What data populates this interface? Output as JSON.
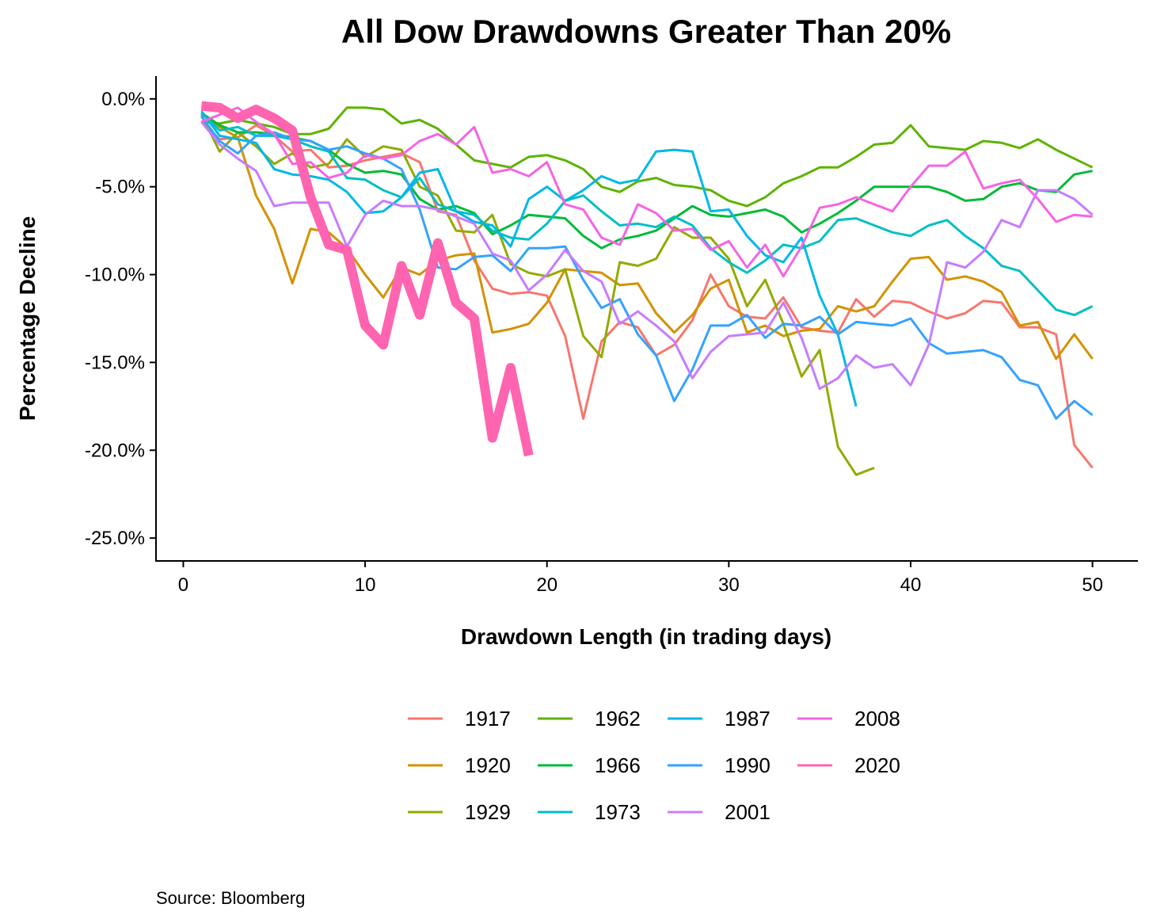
{
  "chart_data": {
    "type": "line",
    "title": "All Dow Drawdowns Greater Than 20%",
    "xlabel": "Drawdown Length (in trading days)",
    "ylabel": "Percentage Decline",
    "xlim": [
      -1.5,
      52.5
    ],
    "ylim": [
      -26.3,
      1.3
    ],
    "xticks": [
      0,
      10,
      20,
      30,
      40,
      50
    ],
    "yticks": [
      0,
      -5,
      -10,
      -15,
      -20,
      -25
    ],
    "ytick_labels": [
      "0.0%",
      "-5.0%",
      "-10.0%",
      "-15.0%",
      "-20.0%",
      "-25.0%"
    ],
    "grid": false,
    "legend_position": "bottom",
    "series": [
      {
        "name": "1917",
        "color": "#F8766D",
        "width": 3,
        "values": [
          -1.3,
          -2.3,
          -2.2,
          -1.5,
          -2.1,
          -3.0,
          -2.9,
          -3.9,
          -3.8,
          -3.5,
          -3.3,
          -3.1,
          -3.6,
          -6.4,
          -6.6,
          -9.2,
          -10.8,
          -11.1,
          -11.0,
          -11.2,
          -13.5,
          -18.2,
          -13.8,
          -12.7,
          -13.0,
          -14.6,
          -14.0,
          -12.6,
          -10.0,
          -11.8,
          -12.4,
          -12.5,
          -11.3,
          -13.0,
          -13.2,
          -13.3,
          -11.4,
          -12.4,
          -11.5,
          -11.6,
          -12.1,
          -12.5,
          -12.2,
          -11.5,
          -11.6,
          -13.0,
          -13.0,
          -13.4,
          -19.7,
          -21.0
        ]
      },
      {
        "name": "1920",
        "color": "#D39200",
        "width": 3,
        "values": [
          -0.8,
          -1.6,
          -2.2,
          -5.5,
          -7.4,
          -10.5,
          -7.4,
          -7.6,
          -8.5,
          -10.0,
          -11.3,
          -9.6,
          -10.0,
          -9.2,
          -8.9,
          -8.8,
          -13.3,
          -13.1,
          -12.8,
          -11.6,
          -9.7,
          -9.8,
          -9.9,
          -10.6,
          -10.5,
          -12.2,
          -13.3,
          -12.3,
          -10.8,
          -10.3,
          -13.3,
          -12.9,
          -13.5,
          -13.2,
          -13.1,
          -11.8,
          -12.1,
          -11.8,
          -10.4,
          -9.1,
          -9.0,
          -10.3,
          -10.1,
          -10.4,
          -11.0,
          -12.9,
          -12.7,
          -14.8,
          -13.4,
          -14.8
        ]
      },
      {
        "name": "1929",
        "color": "#93AA00",
        "width": 3,
        "values": [
          -0.9,
          -3.0,
          -1.9,
          -2.7,
          -3.7,
          -3.1,
          -3.9,
          -3.7,
          -2.3,
          -3.3,
          -2.7,
          -2.9,
          -5.0,
          -5.5,
          -7.5,
          -7.6,
          -6.6,
          -9.4,
          -9.9,
          -10.1,
          -9.7,
          -13.5,
          -14.7,
          -9.3,
          -9.5,
          -9.1,
          -7.3,
          -7.9,
          -7.9,
          -9.1,
          -11.8,
          -10.3,
          -12.8,
          -15.8,
          -14.3,
          -19.8,
          -21.4,
          -21.0
        ]
      },
      {
        "name": "1962",
        "color": "#5EB300",
        "width": 3,
        "values": [
          -1.3,
          -1.4,
          -1.2,
          -1.4,
          -1.6,
          -2.0,
          -2.0,
          -1.7,
          -0.5,
          -0.5,
          -0.6,
          -1.4,
          -1.2,
          -1.7,
          -2.6,
          -3.5,
          -3.7,
          -3.9,
          -3.3,
          -3.2,
          -3.5,
          -4.0,
          -5.0,
          -5.3,
          -4.7,
          -4.5,
          -4.9,
          -5.0,
          -5.2,
          -5.8,
          -6.1,
          -5.6,
          -4.8,
          -4.4,
          -3.9,
          -3.9,
          -3.3,
          -2.6,
          -2.5,
          -1.5,
          -2.7,
          -2.8,
          -2.9,
          -2.4,
          -2.5,
          -2.8,
          -2.3,
          -2.9,
          -3.4,
          -3.9
        ]
      },
      {
        "name": "1966",
        "color": "#00BA38",
        "width": 3,
        "values": [
          -0.8,
          -1.5,
          -1.9,
          -1.9,
          -2.0,
          -2.2,
          -2.4,
          -2.9,
          -3.7,
          -4.2,
          -4.1,
          -4.3,
          -5.7,
          -6.3,
          -6.1,
          -6.5,
          -7.7,
          -7.2,
          -6.6,
          -6.7,
          -6.8,
          -7.8,
          -8.5,
          -8.0,
          -7.8,
          -7.5,
          -6.8,
          -6.1,
          -6.6,
          -6.7,
          -6.5,
          -6.3,
          -6.7,
          -7.6,
          -7.1,
          -6.5,
          -5.8,
          -5.0,
          -5.0,
          -5.0,
          -5.0,
          -5.3,
          -5.8,
          -5.7,
          -5.0,
          -4.8,
          -5.2,
          -5.3,
          -4.3,
          -4.1
        ]
      },
      {
        "name": "1973",
        "color": "#00BFC4",
        "width": 3,
        "values": [
          -0.8,
          -1.8,
          -1.6,
          -2.1,
          -2.1,
          -2.3,
          -2.7,
          -3.0,
          -4.5,
          -4.6,
          -5.2,
          -5.6,
          -4.5,
          -6.0,
          -6.4,
          -6.6,
          -7.5,
          -7.9,
          -8.0,
          -7.1,
          -5.8,
          -5.5,
          -6.4,
          -7.2,
          -7.1,
          -7.3,
          -6.7,
          -7.2,
          -8.5,
          -9.3,
          -9.9,
          -9.2,
          -8.3,
          -8.5,
          -8.1,
          -6.9,
          -6.8,
          -7.2,
          -7.6,
          -7.8,
          -7.2,
          -6.9,
          -7.8,
          -8.5,
          -9.5,
          -9.8,
          -10.9,
          -12.0,
          -12.3,
          -11.8
        ]
      },
      {
        "name": "1987",
        "color": "#00B8E7",
        "width": 3,
        "values": [
          -0.7,
          -2.1,
          -2.3,
          -2.5,
          -4.0,
          -4.3,
          -4.4,
          -4.6,
          -5.3,
          -6.5,
          -6.4,
          -5.6,
          -4.2,
          -4.0,
          -6.4,
          -7.0,
          -7.2,
          -8.4,
          -5.7,
          -5.0,
          -5.8,
          -5.2,
          -4.4,
          -4.8,
          -4.6,
          -3.0,
          -2.9,
          -3.0,
          -6.4,
          -6.3,
          -7.8,
          -8.9,
          -9.3,
          -7.9,
          -11.2,
          -13.4,
          -17.5
        ]
      },
      {
        "name": "1990",
        "color": "#35A2FF",
        "width": 3,
        "values": [
          -1.0,
          -2.4,
          -3.1,
          -2.1,
          -1.9,
          -2.3,
          -2.4,
          -2.9,
          -2.7,
          -3.1,
          -3.4,
          -4.0,
          -6.3,
          -9.6,
          -9.7,
          -9.0,
          -8.9,
          -9.8,
          -8.5,
          -8.5,
          -8.4,
          -10.3,
          -11.9,
          -11.4,
          -13.4,
          -14.6,
          -17.2,
          -15.4,
          -12.9,
          -12.9,
          -12.3,
          -13.6,
          -12.8,
          -12.9,
          -12.4,
          -13.4,
          -12.7,
          -12.8,
          -12.9,
          -12.5,
          -13.9,
          -14.5,
          -14.4,
          -14.3,
          -14.7,
          -16.0,
          -16.3,
          -18.2,
          -17.2,
          -18.0
        ]
      },
      {
        "name": "2001",
        "color": "#C77CFF",
        "width": 3,
        "values": [
          -1.3,
          -2.6,
          -3.4,
          -4.1,
          -6.1,
          -5.9,
          -5.9,
          -5.9,
          -8.4,
          -6.6,
          -5.8,
          -6.1,
          -6.1,
          -6.3,
          -6.7,
          -7.1,
          -8.8,
          -9.2,
          -10.9,
          -10.0,
          -8.6,
          -9.8,
          -10.4,
          -12.8,
          -12.1,
          -12.9,
          -13.8,
          -15.9,
          -14.4,
          -13.5,
          -13.4,
          -13.3,
          -11.6,
          -13.6,
          -16.5,
          -15.9,
          -14.6,
          -15.3,
          -15.1,
          -16.3,
          -14.0,
          -9.3,
          -9.6,
          -8.7,
          -6.9,
          -7.3,
          -5.2,
          -5.2,
          -5.7,
          -6.6
        ]
      },
      {
        "name": "2008",
        "color": "#F564E3",
        "width": 3,
        "values": [
          -1.3,
          -0.9,
          -0.5,
          -1.3,
          -2.0,
          -3.7,
          -3.6,
          -4.5,
          -4.2,
          -3.2,
          -3.4,
          -3.2,
          -2.4,
          -2.0,
          -2.6,
          -1.6,
          -4.2,
          -4.0,
          -4.4,
          -3.6,
          -6.0,
          -6.3,
          -7.9,
          -8.3,
          -6.0,
          -6.5,
          -7.5,
          -7.4,
          -8.6,
          -8.1,
          -9.6,
          -8.3,
          -10.1,
          -8.4,
          -6.2,
          -6.0,
          -5.6,
          -6.0,
          -6.4,
          -5.0,
          -3.8,
          -3.8,
          -3.0,
          -5.1,
          -4.8,
          -4.6,
          -5.7,
          -7.0,
          -6.6,
          -6.7
        ]
      },
      {
        "name": "2020",
        "color": "#FF64B0",
        "width": 12,
        "values": [
          -0.4,
          -0.5,
          -1.1,
          -0.6,
          -1.1,
          -1.8,
          -5.6,
          -8.3,
          -8.6,
          -12.9,
          -14.0,
          -9.5,
          -12.3,
          -8.2,
          -11.6,
          -12.5,
          -19.3,
          -15.3,
          -20.3
        ]
      }
    ]
  },
  "footer": {
    "source": "Source:  Bloomberg"
  }
}
